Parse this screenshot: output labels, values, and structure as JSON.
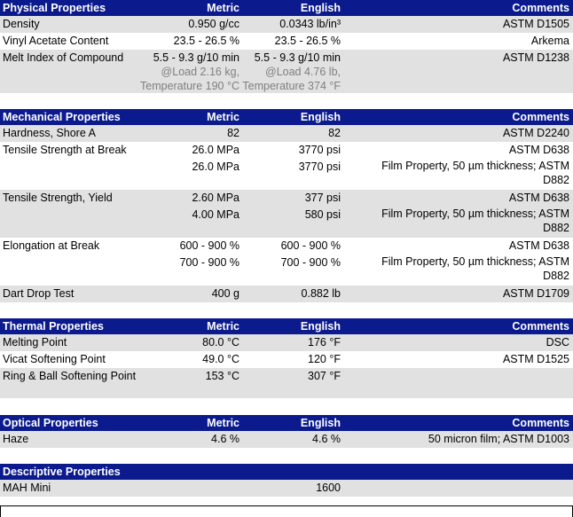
{
  "physical": {
    "header": {
      "title": "Physical Properties",
      "metric": "Metric",
      "english": "English",
      "comments": "Comments"
    },
    "rows": [
      {
        "name": "Density",
        "metric": "0.950 g/cc",
        "english": "0.0343 lb/in³",
        "comments": "ASTM D1505"
      },
      {
        "name": "Vinyl Acetate Content",
        "metric": "23.5 - 26.5 %",
        "english": "23.5 - 26.5 %",
        "comments": "Arkema"
      },
      {
        "name": "Melt Index of Compound",
        "metric": "5.5 - 9.3 g/10 min",
        "english": "5.5 - 9.3 g/10 min",
        "comments": "ASTM D1238",
        "metric_note1": "@Load 2.16 kg,",
        "metric_note2": "Temperature 190 °C",
        "english_note1": "@Load 4.76 lb,",
        "english_note2": "Temperature 374 °F"
      }
    ]
  },
  "mechanical": {
    "header": {
      "title": "Mechanical Properties",
      "metric": "Metric",
      "english": "English",
      "comments": "Comments"
    },
    "rows": [
      {
        "name": "Hardness, Shore A",
        "metric": "82",
        "english": "82",
        "comments": "ASTM D2240"
      },
      {
        "name": "Tensile Strength at Break",
        "metric": "26.0 MPa",
        "english": "3770 psi",
        "comments": "ASTM D638"
      },
      {
        "name": "",
        "metric": "26.0 MPa",
        "english": "3770 psi",
        "comments": "Film Property, 50 µm thickness; ASTM D882"
      },
      {
        "name": "Tensile Strength, Yield",
        "metric": "2.60 MPa",
        "english": "377 psi",
        "comments": "ASTM D638"
      },
      {
        "name": "",
        "metric": "4.00 MPa",
        "english": "580 psi",
        "comments": "Film Property, 50 µm thickness; ASTM D882"
      },
      {
        "name": "Elongation at Break",
        "metric": "600 - 900 %",
        "english": "600 - 900 %",
        "comments": "ASTM D638"
      },
      {
        "name": "",
        "metric": "700 - 900 %",
        "english": "700 - 900 %",
        "comments": "Film Property, 50 µm thickness; ASTM D882"
      },
      {
        "name": "Dart Drop Test",
        "metric": "400 g",
        "english": "0.882 lb",
        "comments": "ASTM D1709"
      }
    ]
  },
  "thermal": {
    "header": {
      "title": "Thermal Properties",
      "metric": "Metric",
      "english": "English",
      "comments": "Comments"
    },
    "rows": [
      {
        "name": "Melting Point",
        "metric": "80.0 °C",
        "english": "176 °F",
        "comments": "DSC"
      },
      {
        "name": "Vicat Softening Point",
        "metric": "49.0 °C",
        "english": "120 °F",
        "comments": "ASTM D1525"
      },
      {
        "name": "Ring & Ball Softening Point",
        "metric": "153 °C",
        "english": "307 °F",
        "comments": ""
      }
    ]
  },
  "optical": {
    "header": {
      "title": "Optical Properties",
      "metric": "Metric",
      "english": "English",
      "comments": "Comments"
    },
    "rows": [
      {
        "name": "Haze",
        "metric": "4.6 %",
        "english": "4.6 %",
        "comments": "50 micron film; ASTM D1003"
      }
    ]
  },
  "descriptive": {
    "header": {
      "title": "Descriptive Properties"
    },
    "rows": [
      {
        "name": "MAH Mini",
        "english": "1600"
      }
    ]
  }
}
